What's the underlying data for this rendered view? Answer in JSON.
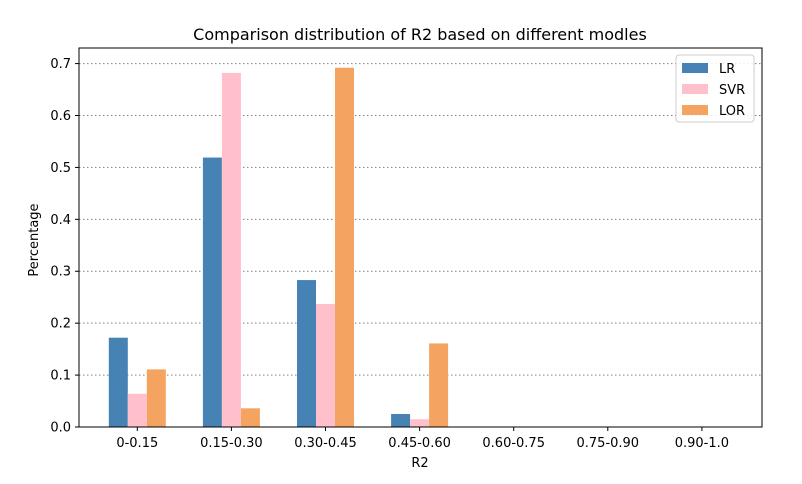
{
  "chart_data": {
    "type": "bar",
    "title": "Comparison distribution of R2 based on different modles",
    "xlabel": "R2",
    "ylabel": "Percentage",
    "categories": [
      "0-0.15",
      "0.15-0.30",
      "0.30-0.45",
      "0.45-0.60",
      "0.60-0.75",
      "0.75-0.90",
      "0.90-1.0"
    ],
    "ylim": [
      0,
      0.73
    ],
    "yticks": [
      "0.0",
      "0.1",
      "0.2",
      "0.3",
      "0.4",
      "0.5",
      "0.6",
      "0.7"
    ],
    "ytick_values": [
      0,
      0.1,
      0.2,
      0.3,
      0.4,
      0.5,
      0.6,
      0.7
    ],
    "grid": "horizontal dotted",
    "legend_position": "top-right",
    "series": [
      {
        "name": "LR",
        "color": "#4682b4",
        "values": [
          0.172,
          0.519,
          0.283,
          0.025,
          0,
          0,
          0
        ]
      },
      {
        "name": "SVR",
        "color": "#ffc0cb",
        "values": [
          0.064,
          0.682,
          0.237,
          0.015,
          0,
          0,
          0
        ]
      },
      {
        "name": "LOR",
        "color": "#f4a460",
        "values": [
          0.111,
          0.036,
          0.692,
          0.161,
          0,
          0,
          0
        ]
      }
    ]
  }
}
